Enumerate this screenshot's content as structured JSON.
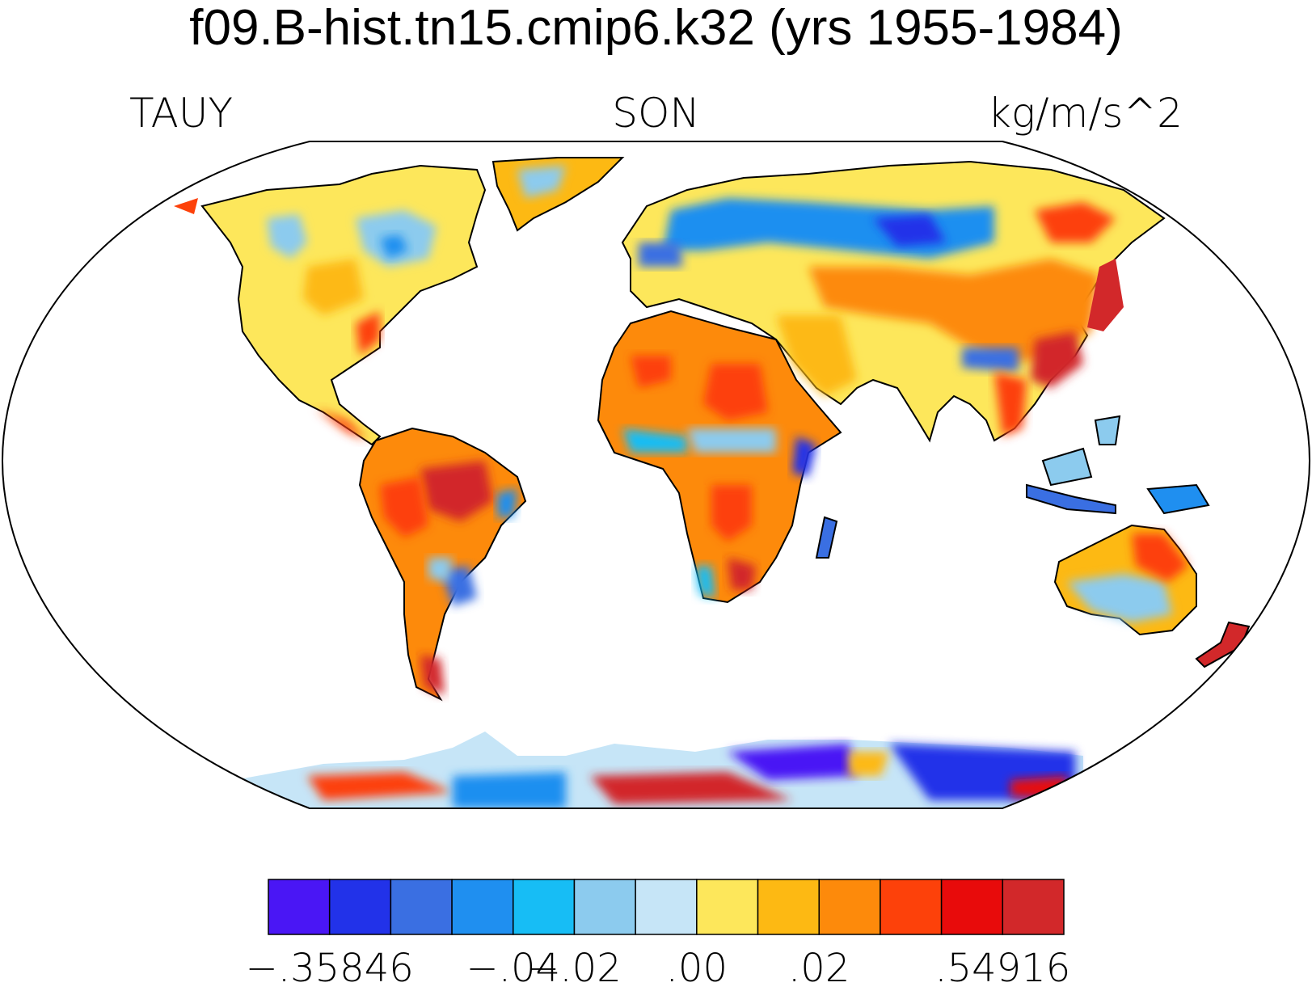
{
  "title": "f09.B-hist.tn15.cmip6.k32 (yrs 1955-1984)",
  "left_string": "TAUY",
  "center_string": "SON",
  "right_string": "kg/m/s^2",
  "map": {
    "projection": "Robinson",
    "field": "TAUY",
    "coastlines": true,
    "ocean_masked": true
  },
  "colorbar": {
    "colors": [
      "#4a16f5",
      "#2232e9",
      "#3a6fe2",
      "#1f8ff0",
      "#17bdf5",
      "#8ccbee",
      "#c6e5f7",
      "#fde75b",
      "#fdb913",
      "#fd8a0b",
      "#fd410a",
      "#e80b0b",
      "#d2282a"
    ],
    "labels": [
      "−.35846",
      "−.04",
      "−.02",
      ".00",
      ".02",
      ".54916"
    ]
  }
}
